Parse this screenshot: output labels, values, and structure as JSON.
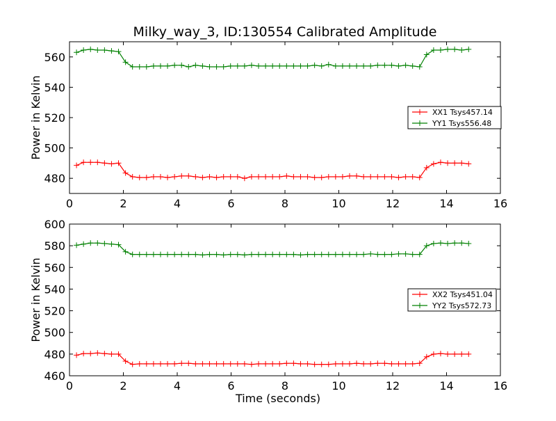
{
  "title": "Milky_way_3, ID:130554 Calibrated Amplitude",
  "chart_data": [
    {
      "type": "line",
      "ylabel": "Power in Kelvin",
      "xlabel": "",
      "xlim": [
        0,
        16
      ],
      "ylim": [
        470,
        570
      ],
      "xticks": [
        "0",
        "2",
        "4",
        "6",
        "8",
        "10",
        "12",
        "14",
        "16"
      ],
      "yticks": [
        "480",
        "500",
        "520",
        "540",
        "560"
      ],
      "ytick_values": [
        480,
        500,
        520,
        540,
        560
      ],
      "legend_position": "center-right",
      "x": [
        0.26,
        0.52,
        0.78,
        1.04,
        1.3,
        1.56,
        1.82,
        2.08,
        2.34,
        2.6,
        2.86,
        3.12,
        3.38,
        3.64,
        3.9,
        4.16,
        4.42,
        4.68,
        4.94,
        5.2,
        5.46,
        5.72,
        5.98,
        6.24,
        6.5,
        6.76,
        7.02,
        7.28,
        7.54,
        7.8,
        8.06,
        8.32,
        8.58,
        8.84,
        9.1,
        9.36,
        9.62,
        9.88,
        10.14,
        10.4,
        10.66,
        10.92,
        11.18,
        11.44,
        11.7,
        11.96,
        12.22,
        12.48,
        12.74,
        13.0,
        13.26,
        13.52,
        13.78,
        14.04,
        14.3,
        14.56,
        14.82
      ],
      "series": [
        {
          "name": "XX1 Tsys457.14",
          "color": "#ff0000",
          "values": [
            488.5,
            490.5,
            490.5,
            490.5,
            490.0,
            489.5,
            490.0,
            483.5,
            481.0,
            480.5,
            480.5,
            481.0,
            481.0,
            480.5,
            481.0,
            481.5,
            481.5,
            481.0,
            480.5,
            481.0,
            480.5,
            481.0,
            481.0,
            481.0,
            480.0,
            481.0,
            481.0,
            481.0,
            481.0,
            481.0,
            481.5,
            481.0,
            481.0,
            481.0,
            480.5,
            480.5,
            481.0,
            481.0,
            481.0,
            481.5,
            481.5,
            481.0,
            481.0,
            481.0,
            481.0,
            481.0,
            480.5,
            481.0,
            481.0,
            480.5,
            487.0,
            489.5,
            490.5,
            490.0,
            490.0,
            490.0,
            489.5
          ]
        },
        {
          "name": "YY1 Tsys556.48",
          "color": "#008000",
          "values": [
            563.0,
            564.5,
            565.0,
            564.5,
            564.5,
            564.0,
            563.5,
            556.5,
            553.5,
            553.5,
            553.5,
            554.0,
            554.0,
            554.0,
            554.5,
            554.5,
            553.5,
            554.5,
            554.0,
            553.5,
            553.5,
            553.5,
            554.0,
            554.0,
            554.0,
            554.5,
            554.0,
            554.0,
            554.0,
            554.0,
            554.0,
            554.0,
            554.0,
            554.0,
            554.5,
            554.0,
            555.0,
            554.0,
            554.0,
            554.0,
            554.0,
            554.0,
            554.0,
            554.5,
            554.5,
            554.5,
            554.0,
            554.5,
            554.0,
            553.5,
            561.5,
            564.5,
            564.5,
            565.0,
            565.0,
            564.5,
            565.0
          ]
        }
      ]
    },
    {
      "type": "line",
      "ylabel": "Power in Kelvin",
      "xlabel": "Time (seconds)",
      "xlim": [
        0,
        16
      ],
      "ylim": [
        460,
        600
      ],
      "xticks": [
        "0",
        "2",
        "4",
        "6",
        "8",
        "10",
        "12",
        "14",
        "16"
      ],
      "yticks": [
        "460",
        "480",
        "500",
        "520",
        "540",
        "560",
        "580",
        "600"
      ],
      "ytick_values": [
        460,
        480,
        500,
        520,
        540,
        560,
        580,
        600
      ],
      "legend_position": "center-right",
      "x": [
        0.26,
        0.52,
        0.78,
        1.04,
        1.3,
        1.56,
        1.82,
        2.08,
        2.34,
        2.6,
        2.86,
        3.12,
        3.38,
        3.64,
        3.9,
        4.16,
        4.42,
        4.68,
        4.94,
        5.2,
        5.46,
        5.72,
        5.98,
        6.24,
        6.5,
        6.76,
        7.02,
        7.28,
        7.54,
        7.8,
        8.06,
        8.32,
        8.58,
        8.84,
        9.1,
        9.36,
        9.62,
        9.88,
        10.14,
        10.4,
        10.66,
        10.92,
        11.18,
        11.44,
        11.7,
        11.96,
        12.22,
        12.48,
        12.74,
        13.0,
        13.26,
        13.52,
        13.78,
        14.04,
        14.3,
        14.56,
        14.82
      ],
      "series": [
        {
          "name": "XX2 Tsys451.04",
          "color": "#ff0000",
          "values": [
            479.0,
            480.5,
            480.5,
            481.0,
            480.5,
            480.0,
            480.0,
            473.5,
            470.5,
            471.0,
            471.0,
            471.0,
            471.0,
            471.0,
            471.0,
            471.5,
            471.5,
            471.0,
            471.0,
            471.0,
            471.0,
            471.0,
            471.0,
            471.0,
            471.0,
            470.5,
            471.0,
            471.0,
            471.0,
            471.0,
            471.5,
            471.5,
            471.0,
            471.0,
            470.5,
            470.5,
            470.5,
            471.0,
            471.0,
            471.0,
            471.5,
            471.0,
            471.0,
            471.5,
            471.5,
            471.0,
            471.0,
            471.0,
            471.0,
            471.5,
            477.5,
            480.0,
            480.5,
            480.0,
            480.0,
            480.0,
            480.0
          ]
        },
        {
          "name": "YY2 Tsys572.73",
          "color": "#008000",
          "values": [
            580.5,
            581.5,
            582.5,
            582.5,
            582.0,
            581.5,
            581.0,
            574.5,
            572.0,
            572.0,
            572.0,
            572.0,
            572.0,
            572.0,
            572.0,
            572.0,
            572.0,
            572.0,
            571.5,
            572.0,
            572.0,
            571.5,
            572.0,
            572.0,
            571.5,
            572.0,
            572.0,
            572.0,
            572.0,
            572.0,
            572.0,
            572.0,
            571.5,
            572.0,
            572.0,
            572.0,
            572.0,
            572.0,
            572.0,
            572.0,
            572.0,
            572.0,
            572.5,
            572.0,
            572.0,
            572.0,
            572.5,
            572.5,
            572.0,
            572.0,
            580.0,
            582.0,
            582.5,
            582.0,
            582.5,
            582.5,
            582.0
          ]
        }
      ]
    }
  ]
}
